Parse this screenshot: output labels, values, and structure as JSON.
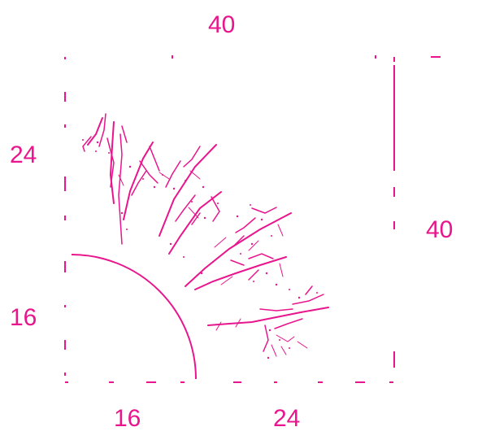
{
  "colors": {
    "ink": "#e8158c",
    "background": "#ffffff"
  },
  "labels": {
    "top_width": "40",
    "right_height": "40",
    "left_upper": "24",
    "left_lower": "16",
    "bottom_left": "16",
    "bottom_right": "24"
  }
}
